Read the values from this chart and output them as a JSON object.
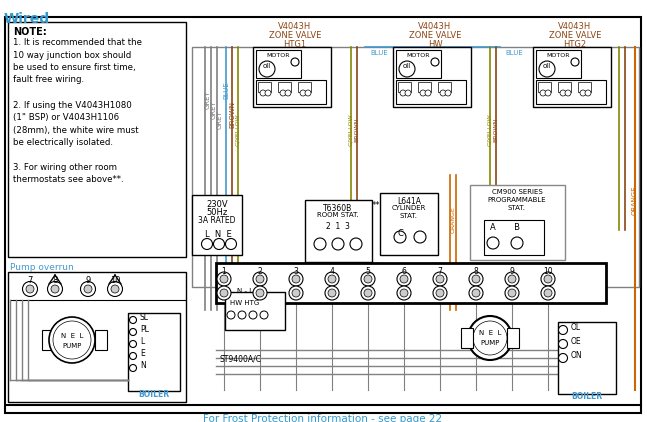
{
  "bg_color": "#ffffff",
  "title": "Wired",
  "title_color": "#3399cc",
  "frost_text": "For Frost Protection information - see page 22",
  "frost_color": "#3399cc",
  "note_lines": [
    "1. It is recommended that the",
    "10 way junction box should",
    "be used to ensure first time,",
    "fault free wiring.",
    "",
    "2. If using the V4043H1080",
    "(1\" BSP) or V4043H1106",
    "(28mm), the white wire must",
    "be electrically isolated.",
    "",
    "3. For wiring other room",
    "thermostats see above**."
  ],
  "wire_colors": {
    "grey": "#808080",
    "blue": "#4499cc",
    "brown": "#8B4513",
    "gyellow": "#888800",
    "orange": "#cc6600",
    "black": "#000000",
    "white": "#ffffff",
    "ltgrey": "#aaaaaa"
  },
  "zone_labels": [
    "V4043H\nZONE VALVE\nHTG1",
    "V4043H\nZONE VALVE\nHW",
    "V4043H\nZONE VALVE\nHTG2"
  ]
}
